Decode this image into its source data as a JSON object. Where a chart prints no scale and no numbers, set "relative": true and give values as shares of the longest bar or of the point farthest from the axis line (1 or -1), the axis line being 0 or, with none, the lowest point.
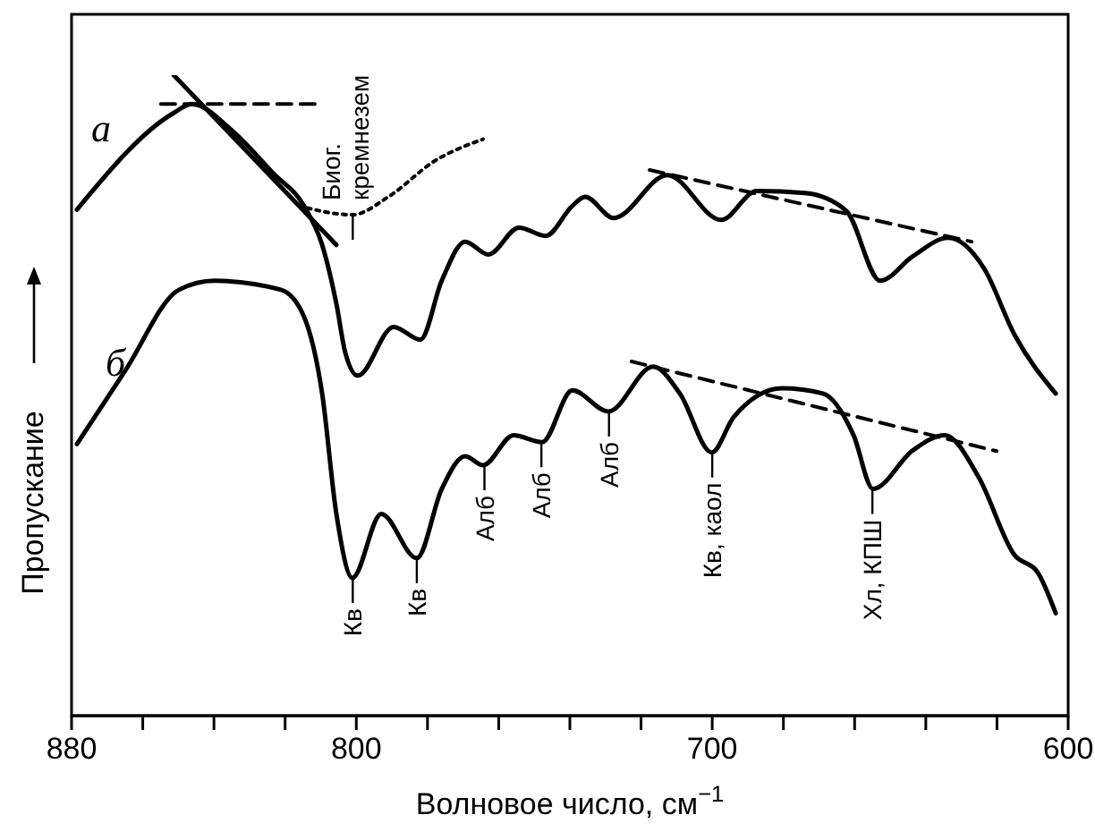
{
  "chart_data": {
    "type": "line",
    "xlabel": "Волновое число, см$^{−1}$",
    "ylabel": "Пропускание",
    "relative": true,
    "xlim": [
      880,
      600
    ],
    "xticks": [
      880,
      {
        "value": 860,
        "label": null
      },
      {
        "value": 840,
        "label": null
      },
      {
        "value": 820,
        "label": null
      },
      800,
      {
        "value": 780,
        "label": null
      },
      {
        "value": 760,
        "label": null
      },
      {
        "value": 740,
        "label": null
      },
      {
        "value": 720,
        "label": null
      },
      700,
      {
        "value": 680,
        "label": null
      },
      {
        "value": 660,
        "label": null
      },
      {
        "value": 640,
        "label": null
      },
      {
        "value": 620,
        "label": null
      },
      600
    ],
    "grid": false,
    "legend": false,
    "marker": "none",
    "series": [
      {
        "name": "а",
        "color": "#000000",
        "line_style": "solid",
        "x": [
          878.5,
          851.3,
          846.3,
          834.8,
          823.2,
          814.7,
          809.6,
          805.6,
          803.1,
          799.6,
          789.5,
          782,
          776,
          769.4,
          762.9,
          754.3,
          746.8,
          739.3,
          735.7,
          727.7,
          712.6,
          697.5,
          687.5,
          673.9,
          662.3,
          652.8,
          643.7,
          633.7,
          623.6,
          615.1,
          603.5
        ],
        "values": [
          0.79,
          0.941,
          0.955,
          0.913,
          0.846,
          0.796,
          0.735,
          0.643,
          0.567,
          0.531,
          0.607,
          0.587,
          0.679,
          0.74,
          0.72,
          0.762,
          0.749,
          0.796,
          0.81,
          0.777,
          0.844,
          0.774,
          0.819,
          0.816,
          0.788,
          0.679,
          0.717,
          0.746,
          0.698,
          0.595,
          0.503
        ]
      },
      {
        "name": "б",
        "color": "#000000",
        "line_style": "solid",
        "x": [
          878.5,
          864.9,
          849.8,
          839.8,
          821.2,
          814.7,
          809.6,
          805.6,
          801.1,
          793,
          783,
          776,
          769.4,
          764.4,
          755.8,
          747.8,
          739.3,
          729.2,
          716.6,
          709.1,
          700.1,
          694,
          680.4,
          668.9,
          660.3,
          654.8,
          643.7,
          634.7,
          625.1,
          615.1,
          608.6,
          603.5
        ],
        "values": [
          0.424,
          0.539,
          0.665,
          0.679,
          0.665,
          0.623,
          0.503,
          0.315,
          0.215,
          0.315,
          0.246,
          0.354,
          0.405,
          0.391,
          0.438,
          0.427,
          0.508,
          0.475,
          0.545,
          0.503,
          0.411,
          0.466,
          0.511,
          0.503,
          0.438,
          0.354,
          0.414,
          0.438,
          0.372,
          0.251,
          0.224,
          0.16
        ]
      },
      {
        "color": "#000000",
        "line_style": "dotted",
        "x": [
          816.2,
          801.1,
          791,
          778,
          764.4
        ],
        "values": [
          0.796,
          0.782,
          0.81,
          0.866,
          0.9
        ]
      },
      {
        "color": "#000000",
        "line_style": "solid",
        "x": [
          851.3,
          805.6
        ],
        "values": [
          1.0,
          0.735
        ]
      },
      {
        "color": "#000000",
        "line_style": "dashed",
        "x": [
          854.9,
          811.1
        ],
        "values": [
          0.955,
          0.955
        ]
      },
      {
        "color": "#000000",
        "line_style": "dashed",
        "x": [
          717.6,
          627.1
        ],
        "values": [
          0.852,
          0.74
        ]
      },
      {
        "color": "#000000",
        "line_style": "dashed",
        "x": [
          722.7,
          620.1
        ],
        "values": [
          0.553,
          0.413
        ]
      }
    ],
    "annotations": [
      {
        "text": "Биог. кремнезем",
        "x": 801,
        "y": 0.782
      },
      {
        "text": "Кв",
        "x": 801,
        "y": 0.215
      },
      {
        "text": "Кв",
        "x": 783,
        "y": 0.246
      },
      {
        "text": "Алб",
        "x": 764,
        "y": 0.391
      },
      {
        "text": "Алб",
        "x": 748,
        "y": 0.427
      },
      {
        "text": "Алб",
        "x": 729,
        "y": 0.475
      },
      {
        "text": "Кв, каол",
        "x": 700,
        "y": 0.411
      },
      {
        "text": "Хл, КПШ",
        "x": 655,
        "y": 0.354
      }
    ]
  }
}
